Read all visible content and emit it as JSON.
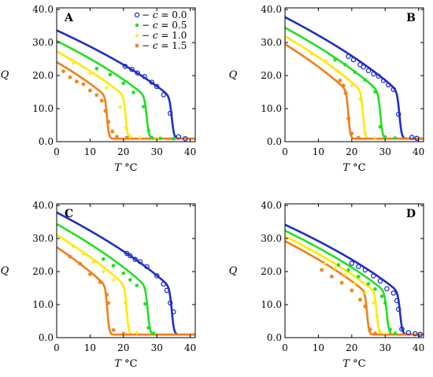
{
  "chart_data": {
    "type": "line",
    "legend_placement": "top-right of panel A",
    "series_styles": [
      {
        "c": "0.0",
        "color": "#1f2fc8",
        "marker": "circle-open",
        "label_prefix": "− ",
        "label_var": "c",
        "label_eq": " = 0.0"
      },
      {
        "c": "0.5",
        "color": "#22e022",
        "marker": "dot",
        "label_prefix": "− ",
        "label_var": "c",
        "label_eq": " = 0.5"
      },
      {
        "c": "1.0",
        "color": "#ffea00",
        "marker": "plus",
        "label_prefix": "− ",
        "label_var": "c",
        "label_eq": " = 1.0"
      },
      {
        "c": "1.5",
        "color": "#f07f1a",
        "marker": "star",
        "label_prefix": "− ",
        "label_var": "c",
        "label_eq": " = 1.5"
      }
    ],
    "panels": [
      {
        "letter": "A",
        "xlabel_var": "T",
        "xlabel_unit": "°C",
        "ylabel": "Q",
        "xlim": [
          0,
          41.5
        ],
        "ylim": [
          0,
          40.5
        ],
        "xticks": [
          0,
          10,
          20,
          30,
          40
        ],
        "xtick_labels": [
          "0",
          "10",
          "20",
          "30",
          "40"
        ],
        "yticks": [
          0,
          10,
          20,
          30,
          40
        ],
        "ytick_labels": [
          "0.0",
          "10.0",
          "20.0",
          "30.0",
          "40.0"
        ],
        "show_legend": true,
        "curves": [
          {
            "A0": 32.8,
            "Tc": 34.5,
            "w": 0.35
          },
          {
            "A0": 29.6,
            "Tc": 27.0,
            "w": 0.35
          },
          {
            "A0": 26.4,
            "Tc": 20.7,
            "w": 0.32
          },
          {
            "A0": 23.2,
            "Tc": 15.1,
            "w": 0.3
          }
        ],
        "points": [
          [
            [
              20.5,
              22.8
            ],
            [
              22.5,
              21.9
            ],
            [
              24.2,
              20.8
            ],
            [
              26.3,
              19.7
            ],
            [
              28.5,
              18.0
            ],
            [
              30.0,
              16.7
            ],
            [
              32.0,
              14.2
            ],
            [
              34.0,
              8.6
            ],
            [
              36.5,
              1.5
            ],
            [
              38.5,
              0.9
            ]
          ],
          [
            [
              12.0,
              22.1
            ],
            [
              16.0,
              20.3
            ],
            [
              20.0,
              17.7
            ],
            [
              23.0,
              14.9
            ],
            [
              26.0,
              10.6
            ],
            [
              27.5,
              3.4
            ],
            [
              28.5,
              1.2
            ],
            [
              31.0,
              1.0
            ],
            [
              35.0,
              0.9
            ]
          ],
          [
            [
              5.0,
              23.8
            ],
            [
              10.0,
              20.6
            ],
            [
              15.0,
              16.3
            ],
            [
              19.0,
              10.4
            ],
            [
              20.7,
              4.2
            ],
            [
              22.0,
              1.5
            ],
            [
              25.0,
              1.2
            ],
            [
              30.0,
              1.0
            ]
          ],
          [
            [
              2.0,
              21.3
            ],
            [
              4.0,
              19.5
            ],
            [
              6.0,
              18.2
            ],
            [
              8.0,
              17.4
            ],
            [
              10.0,
              15.5
            ],
            [
              12.0,
              14.1
            ],
            [
              13.5,
              12.4
            ],
            [
              14.6,
              9.3
            ],
            [
              15.5,
              6.0
            ],
            [
              16.7,
              3.1
            ],
            [
              18.0,
              1.5
            ],
            [
              21.0,
              1.2
            ]
          ]
        ]
      },
      {
        "letter": "B",
        "xlabel_var": "T",
        "xlabel_unit": "°C",
        "ylabel": "Q",
        "xlim": [
          0,
          41.5
        ],
        "ylim": [
          0,
          40.5
        ],
        "xticks": [
          0,
          10,
          20,
          30,
          40
        ],
        "xtick_labels": [
          "0",
          "10",
          "20",
          "30",
          "40"
        ],
        "yticks": [
          0,
          10,
          20,
          30,
          40
        ],
        "ytick_labels": [
          "0.0",
          "10.0",
          "20.0",
          "30.0",
          "40.0"
        ],
        "show_legend": false,
        "curves": [
          {
            "A0": 36.8,
            "Tc": 34.3,
            "w": 0.35
          },
          {
            "A0": 33.6,
            "Tc": 28.6,
            "w": 0.35
          },
          {
            "A0": 31.0,
            "Tc": 23.4,
            "w": 0.32
          },
          {
            "A0": 28.6,
            "Tc": 19.0,
            "w": 0.3
          }
        ],
        "points": [
          [
            [
              19.0,
              25.8
            ],
            [
              20.5,
              24.8
            ],
            [
              22.5,
              23.3
            ],
            [
              23.5,
              22.6
            ],
            [
              25.0,
              21.5
            ],
            [
              26.5,
              20.5
            ],
            [
              28.0,
              19.8
            ],
            [
              29.5,
              18.5
            ],
            [
              31.0,
              17.2
            ],
            [
              32.5,
              15.8
            ],
            [
              34.0,
              8.3
            ],
            [
              38.0,
              1.3
            ],
            [
              39.5,
              1.0
            ]
          ],
          [
            [
              15.0,
              24.8
            ],
            [
              18.0,
              23.3
            ],
            [
              21.0,
              21.0
            ],
            [
              24.0,
              18.7
            ],
            [
              27.0,
              15.1
            ],
            [
              28.5,
              4.5
            ],
            [
              30.0,
              1.4
            ],
            [
              33.0,
              1.1
            ]
          ],
          [
            [
              8.0,
              26.5
            ],
            [
              12.0,
              24.5
            ],
            [
              16.0,
              21.3
            ],
            [
              20.0,
              17.0
            ],
            [
              22.5,
              12.8
            ],
            [
              24.0,
              2.5
            ],
            [
              27.0,
              1.2
            ]
          ],
          [
            [
              16.5,
              18.5
            ],
            [
              17.5,
              17.0
            ],
            [
              18.2,
              14.7
            ],
            [
              19.0,
              7.0
            ],
            [
              20.0,
              2.5
            ],
            [
              22.0,
              1.2
            ]
          ]
        ]
      },
      {
        "letter": "C",
        "xlabel_var": "T",
        "xlabel_unit": "°C",
        "ylabel": "Q",
        "xlim": [
          0,
          41.5
        ],
        "ylim": [
          0,
          40.5
        ],
        "xticks": [
          0,
          10,
          20,
          30,
          40
        ],
        "xtick_labels": [
          "0",
          "10",
          "20",
          "30",
          "40"
        ],
        "yticks": [
          0,
          10,
          20,
          30,
          40
        ],
        "ytick_labels": [
          "0.0",
          "10.0",
          "20.0",
          "30.0",
          "40.0"
        ],
        "show_legend": false,
        "curves": [
          {
            "A0": 37.0,
            "Tc": 34.5,
            "w": 0.35
          },
          {
            "A0": 33.5,
            "Tc": 27.3,
            "w": 0.35
          },
          {
            "A0": 30.2,
            "Tc": 21.0,
            "w": 0.32
          },
          {
            "A0": 26.5,
            "Tc": 15.2,
            "w": 0.3
          }
        ],
        "points": [
          [
            [
              21.0,
              25.5
            ],
            [
              22.0,
              24.8
            ],
            [
              23.5,
              23.7
            ],
            [
              25.0,
              23.0
            ],
            [
              27.0,
              21.5
            ],
            [
              30.0,
              18.7
            ],
            [
              32.0,
              16.2
            ],
            [
              33.0,
              14.3
            ],
            [
              34.0,
              10.5
            ],
            [
              35.0,
              7.8
            ]
          ],
          [
            [
              14.0,
              23.8
            ],
            [
              17.0,
              21.8
            ],
            [
              20.0,
              19.5
            ],
            [
              22.0,
              17.5
            ],
            [
              24.0,
              15.8
            ],
            [
              26.5,
              10.2
            ],
            [
              27.5,
              3.0
            ],
            [
              29.0,
              1.3
            ]
          ],
          [
            [
              5.0,
              27.5
            ],
            [
              8.0,
              25.3
            ],
            [
              11.0,
              22.8
            ],
            [
              14.0,
              20.0
            ],
            [
              17.0,
              17.5
            ],
            [
              20.5,
              10.5
            ],
            [
              21.5,
              3.0
            ],
            [
              24.0,
              1.4
            ]
          ],
          [
            [
              4.0,
              24.5
            ],
            [
              7.0,
              22.4
            ],
            [
              10.0,
              19.2
            ],
            [
              13.0,
              16.8
            ],
            [
              15.0,
              13.0
            ],
            [
              15.5,
              10.5
            ],
            [
              17.0,
              2.3
            ],
            [
              20.0,
              1.2
            ]
          ]
        ]
      },
      {
        "letter": "D",
        "xlabel_var": "T",
        "xlabel_unit": "°C",
        "ylabel": "Q",
        "xlim": [
          0,
          41.5
        ],
        "ylim": [
          0,
          40.5
        ],
        "xticks": [
          0,
          10,
          20,
          30,
          40
        ],
        "xtick_labels": [
          "0",
          "10",
          "20",
          "30",
          "40"
        ],
        "yticks": [
          0,
          10,
          20,
          30,
          40
        ],
        "ytick_labels": [
          "0.0",
          "10.0",
          "20.0",
          "30.0",
          "40.0"
        ],
        "show_legend": false,
        "curves": [
          {
            "A0": 33.3,
            "Tc": 34.5,
            "w": 0.35
          },
          {
            "A0": 31.5,
            "Tc": 30.5,
            "w": 0.35
          },
          {
            "A0": 29.8,
            "Tc": 27.5,
            "w": 0.32
          },
          {
            "A0": 28.3,
            "Tc": 24.6,
            "w": 0.3
          }
        ],
        "points": [
          [
            [
              20.0,
              22.5
            ],
            [
              22.0,
              21.5
            ],
            [
              24.0,
              20.5
            ],
            [
              26.5,
              18.7
            ],
            [
              28.5,
              17.1
            ],
            [
              30.5,
              14.8
            ],
            [
              32.5,
              13.5
            ],
            [
              33.5,
              11.2
            ],
            [
              34.0,
              8.6
            ],
            [
              35.0,
              2.6
            ],
            [
              37.0,
              1.5
            ],
            [
              39.0,
              1.2
            ],
            [
              40.5,
              1.0
            ]
          ],
          [
            [
              16.0,
              22.0
            ],
            [
              19.0,
              20.5
            ],
            [
              22.0,
              18.5
            ],
            [
              25.0,
              16.3
            ],
            [
              27.0,
              14.7
            ],
            [
              29.0,
              12.5
            ],
            [
              30.0,
              10.5
            ],
            [
              31.5,
              2.5
            ],
            [
              33.0,
              1.3
            ]
          ],
          [
            [
              12.0,
              22.5
            ],
            [
              15.0,
              21.0
            ],
            [
              18.0,
              19.0
            ],
            [
              21.0,
              16.5
            ],
            [
              24.0,
              13.7
            ],
            [
              26.5,
              10.5
            ],
            [
              27.5,
              6.5
            ],
            [
              28.5,
              2.0
            ],
            [
              30.0,
              1.2
            ]
          ],
          [
            [
              11.0,
              20.5
            ],
            [
              14.0,
              18.5
            ],
            [
              17.0,
              16.6
            ],
            [
              20.0,
              14.3
            ],
            [
              22.5,
              11.5
            ],
            [
              24.0,
              9.5
            ],
            [
              25.5,
              2.5
            ],
            [
              27.0,
              1.3
            ]
          ]
        ]
      }
    ]
  }
}
